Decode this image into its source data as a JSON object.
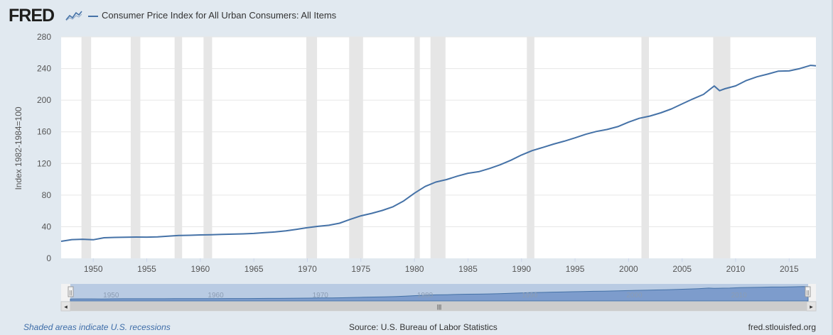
{
  "header": {
    "logo_text": "FRED",
    "logo_icon": "line-chart-icon",
    "series_legend": "Consumer Price Index for All Urban Consumers: All Items"
  },
  "colors": {
    "series": "#4572a7",
    "recession_band": "#e6e6e6",
    "background": "#e1e9f0",
    "plot_background": "#ffffff"
  },
  "chart_data": {
    "type": "line",
    "title": "",
    "xlabel": "",
    "ylabel": "Index 1982-1984=100",
    "xlim": [
      1947,
      2017.5
    ],
    "ylim": [
      0,
      280
    ],
    "yticks": [
      0,
      40,
      80,
      120,
      160,
      200,
      240,
      280
    ],
    "xticks": [
      1950,
      1955,
      1960,
      1965,
      1970,
      1975,
      1980,
      1985,
      1990,
      1995,
      2000,
      2005,
      2010,
      2015
    ],
    "grid": "horizontal",
    "recessions": [
      [
        1948.9,
        1949.8
      ],
      [
        1953.5,
        1954.4
      ],
      [
        1957.6,
        1958.3
      ],
      [
        1960.3,
        1961.1
      ],
      [
        1969.9,
        1970.9
      ],
      [
        1973.9,
        1975.2
      ],
      [
        1980.0,
        1980.5
      ],
      [
        1981.5,
        1982.9
      ],
      [
        1990.5,
        1991.2
      ],
      [
        2001.2,
        2001.9
      ],
      [
        2007.9,
        2009.5
      ]
    ],
    "series": [
      {
        "x": [
          1947,
          1948,
          1949,
          1950,
          1951,
          1952,
          1953,
          1954,
          1955,
          1956,
          1957,
          1958,
          1959,
          1960,
          1961,
          1962,
          1963,
          1964,
          1965,
          1966,
          1967,
          1968,
          1969,
          1970,
          1971,
          1972,
          1973,
          1974,
          1975,
          1976,
          1977,
          1978,
          1979,
          1980,
          1981,
          1982,
          1983,
          1984,
          1985,
          1986,
          1987,
          1988,
          1989,
          1990,
          1991,
          1992,
          1993,
          1994,
          1995,
          1996,
          1997,
          1998,
          1999,
          2000,
          2001,
          2002,
          2003,
          2004,
          2005,
          2006,
          2007,
          2008,
          2008.5,
          2009,
          2010,
          2011,
          2012,
          2013,
          2014,
          2015,
          2016,
          2017,
          2017.5
        ],
        "values": [
          21.5,
          23.7,
          24.1,
          23.5,
          26.0,
          26.5,
          26.7,
          26.9,
          26.8,
          27.2,
          28.1,
          28.9,
          29.2,
          29.6,
          29.9,
          30.3,
          30.6,
          31.0,
          31.5,
          32.5,
          33.4,
          34.8,
          36.7,
          38.8,
          40.5,
          41.8,
          44.4,
          49.3,
          53.8,
          56.9,
          60.6,
          65.2,
          72.6,
          82.4,
          90.9,
          96.5,
          99.6,
          103.9,
          107.6,
          109.6,
          113.6,
          118.3,
          124.0,
          130.7,
          136.2,
          140.3,
          144.5,
          148.2,
          152.4,
          156.9,
          160.5,
          163.0,
          166.6,
          172.2,
          177.1,
          179.9,
          184.0,
          188.9,
          195.3,
          201.6,
          207.3,
          218.0,
          212.0,
          214.5,
          218.1,
          224.9,
          229.6,
          233.0,
          236.7,
          237.0,
          240.0,
          244.0,
          243.5
        ]
      }
    ]
  },
  "navigator": {
    "labels": [
      "1950",
      "1960",
      "1970",
      "1980",
      "1990",
      "2000",
      "2010"
    ],
    "handle_left": "||",
    "handle_right": "||",
    "scroll_left_arrow": "◂",
    "scroll_right_arrow": "▸",
    "scroll_grip": "|||"
  },
  "footer": {
    "recession_note": "Shaded areas indicate U.S. recessions",
    "source": "Source: U.S. Bureau of Labor Statistics",
    "site": "fred.stlouisfed.org"
  }
}
